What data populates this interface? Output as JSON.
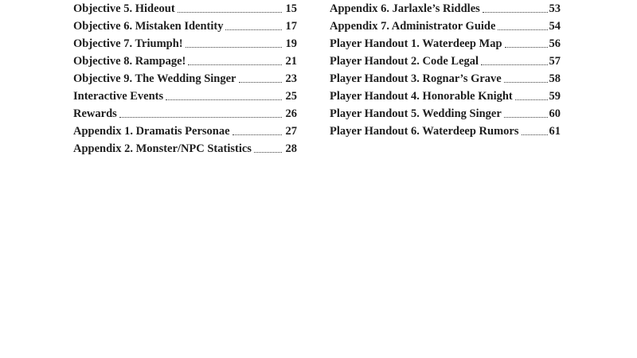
{
  "page": {
    "background_color": "#ffffff",
    "text_color": "#1e1e1e",
    "leader_dot_color": "#3c3c3c"
  },
  "toc": {
    "left_column": {
      "entries": [
        {
          "title": "Objective 5. Hideout",
          "page": "15"
        },
        {
          "title": "Objective 6. Mistaken Identity",
          "page": "17"
        },
        {
          "title": "Objective 7. Triumph!",
          "page": "19"
        },
        {
          "title": "Objective 8. Rampage!",
          "page": "21"
        },
        {
          "title": "Objective 9. The Wedding Singer",
          "page": "23"
        },
        {
          "title": "Interactive Events",
          "page": "25"
        },
        {
          "title": "Rewards",
          "page": "26"
        },
        {
          "title": "Appendix 1. Dramatis Personae",
          "page": "27"
        },
        {
          "title": "Appendix 2. Monster/NPC Statistics",
          "page": "28"
        }
      ]
    },
    "right_column": {
      "entries": [
        {
          "title": "Appendix 6. Jarlaxle’s Riddles",
          "page": "53"
        },
        {
          "title": "Appendix 7. Administrator Guide",
          "page": "54"
        },
        {
          "title": "Player Handout 1. Waterdeep Map",
          "page": "56"
        },
        {
          "title": "Player Handout 2. Code Legal",
          "page": "57"
        },
        {
          "title": "Player Handout 3. Rognar’s Grave",
          "page": "58"
        },
        {
          "title": "Player Handout 4. Honorable Knight",
          "page": "59"
        },
        {
          "title": "Player Handout 5. Wedding Singer",
          "page": "60"
        },
        {
          "title": "Player Handout 6. Waterdeep Rumors",
          "page": "61"
        }
      ]
    }
  }
}
